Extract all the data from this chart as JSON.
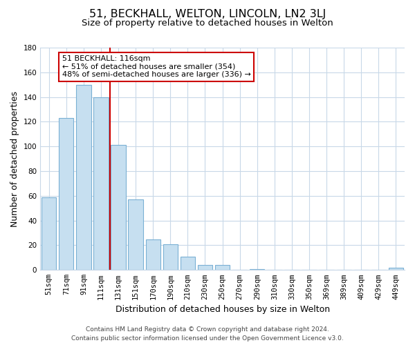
{
  "title": "51, BECKHALL, WELTON, LINCOLN, LN2 3LJ",
  "subtitle": "Size of property relative to detached houses in Welton",
  "xlabel": "Distribution of detached houses by size in Welton",
  "ylabel": "Number of detached properties",
  "bar_labels": [
    "51sqm",
    "71sqm",
    "91sqm",
    "111sqm",
    "131sqm",
    "151sqm",
    "170sqm",
    "190sqm",
    "210sqm",
    "230sqm",
    "250sqm",
    "270sqm",
    "290sqm",
    "310sqm",
    "330sqm",
    "350sqm",
    "369sqm",
    "389sqm",
    "409sqm",
    "429sqm",
    "449sqm"
  ],
  "bar_values": [
    59,
    123,
    150,
    140,
    101,
    57,
    25,
    21,
    11,
    4,
    4,
    0,
    1,
    0,
    0,
    0,
    0,
    0,
    0,
    0,
    2
  ],
  "bar_color": "#c6dff0",
  "bar_edge_color": "#7ab0d4",
  "vline_index": 3,
  "vline_color": "#cc0000",
  "ylim": [
    0,
    180
  ],
  "yticks": [
    0,
    20,
    40,
    60,
    80,
    100,
    120,
    140,
    160,
    180
  ],
  "annotation_title": "51 BECKHALL: 116sqm",
  "annotation_line1": "← 51% of detached houses are smaller (354)",
  "annotation_line2": "48% of semi-detached houses are larger (336) →",
  "annotation_box_color": "#ffffff",
  "annotation_box_edge": "#cc0000",
  "footer_line1": "Contains HM Land Registry data © Crown copyright and database right 2024.",
  "footer_line2": "Contains public sector information licensed under the Open Government Licence v3.0.",
  "bg_color": "#ffffff",
  "grid_color": "#c8d8e8",
  "title_fontsize": 11.5,
  "subtitle_fontsize": 9.5,
  "axis_label_fontsize": 9,
  "tick_fontsize": 7.5,
  "annotation_fontsize": 8,
  "footer_fontsize": 6.5
}
